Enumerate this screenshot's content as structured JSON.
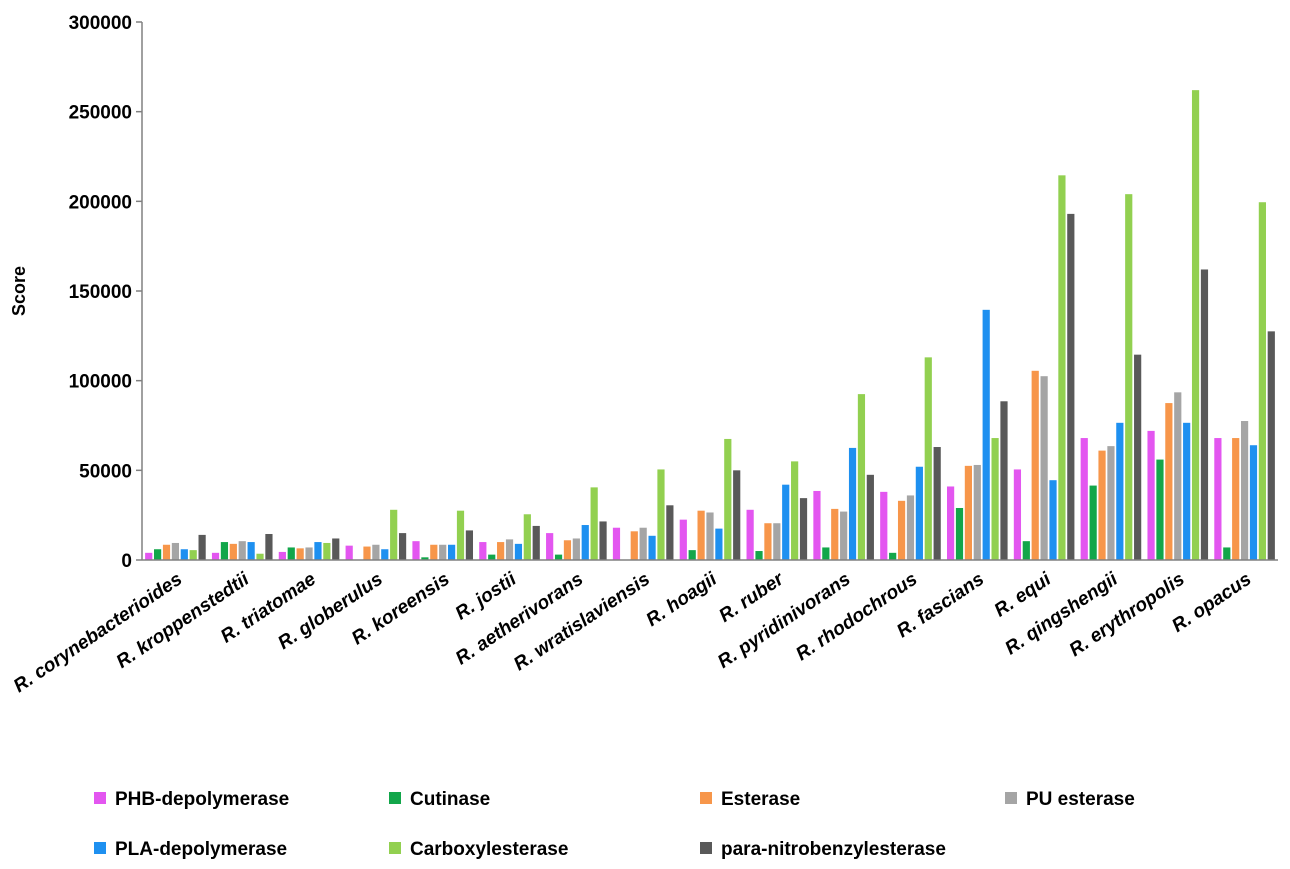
{
  "chart_data": {
    "type": "bar",
    "ylabel": "Score",
    "xlabel": "",
    "ylim": [
      0,
      300000
    ],
    "yticks": [
      "0",
      "50000",
      "100000",
      "150000",
      "200000",
      "250000",
      "300000"
    ],
    "grid": false,
    "legend_position": "bottom",
    "categories": [
      "R. corynebacterioides",
      "R. kroppenstedtii",
      "R. triatomae",
      "R. globerulus",
      "R. koreensis",
      "R. jostii",
      "R. aetherivorans",
      "R. wratislaviensis",
      "R. hoagii",
      "R. ruber",
      "R. pyridinivorans",
      "R. rhodochrous",
      "R. fascians",
      "R. equi",
      "R. qingshengii",
      "R. erythropolis",
      "R. opacus"
    ],
    "series": [
      {
        "name": "PHB-depolymerase",
        "color": "#e356f0",
        "values": [
          4000,
          4000,
          4500,
          8000,
          10500,
          10000,
          15000,
          18000,
          22500,
          28000,
          38500,
          38000,
          41000,
          50500,
          68000,
          72000,
          68000
        ]
      },
      {
        "name": "Cutinase",
        "color": "#12a64a",
        "values": [
          6000,
          10000,
          7000,
          0,
          1500,
          3000,
          3000,
          0,
          5500,
          5000,
          7000,
          4000,
          29000,
          10500,
          41500,
          56000,
          7000
        ]
      },
      {
        "name": "Esterase",
        "color": "#f7964a",
        "values": [
          8500,
          9000,
          6500,
          7500,
          8500,
          10000,
          11000,
          16000,
          27500,
          20500,
          28500,
          33000,
          52500,
          105500,
          61000,
          87500,
          68000
        ]
      },
      {
        "name": "PU esterase",
        "color": "#a5a5a5",
        "values": [
          9500,
          10500,
          7000,
          8500,
          8500,
          11500,
          12000,
          18000,
          26500,
          20500,
          27000,
          36000,
          53000,
          102500,
          63500,
          93500,
          77500
        ]
      },
      {
        "name": "PLA-depolymerase",
        "color": "#1e90f0",
        "values": [
          6000,
          10000,
          10000,
          6000,
          8500,
          9000,
          19500,
          13500,
          17500,
          42000,
          62500,
          52000,
          139500,
          44500,
          76500,
          76500,
          64000
        ]
      },
      {
        "name": "Carboxylesterase",
        "color": "#92d050",
        "values": [
          5500,
          3500,
          9500,
          28000,
          27500,
          25500,
          40500,
          50500,
          67500,
          55000,
          92500,
          113000,
          68000,
          214500,
          204000,
          262000,
          199500
        ]
      },
      {
        "name": "para-nitrobenzylesterase",
        "color": "#595959",
        "values": [
          14000,
          14500,
          12000,
          15000,
          16500,
          19000,
          21500,
          30500,
          50000,
          34500,
          47500,
          63000,
          88500,
          193000,
          114500,
          162000,
          127500
        ]
      }
    ]
  }
}
